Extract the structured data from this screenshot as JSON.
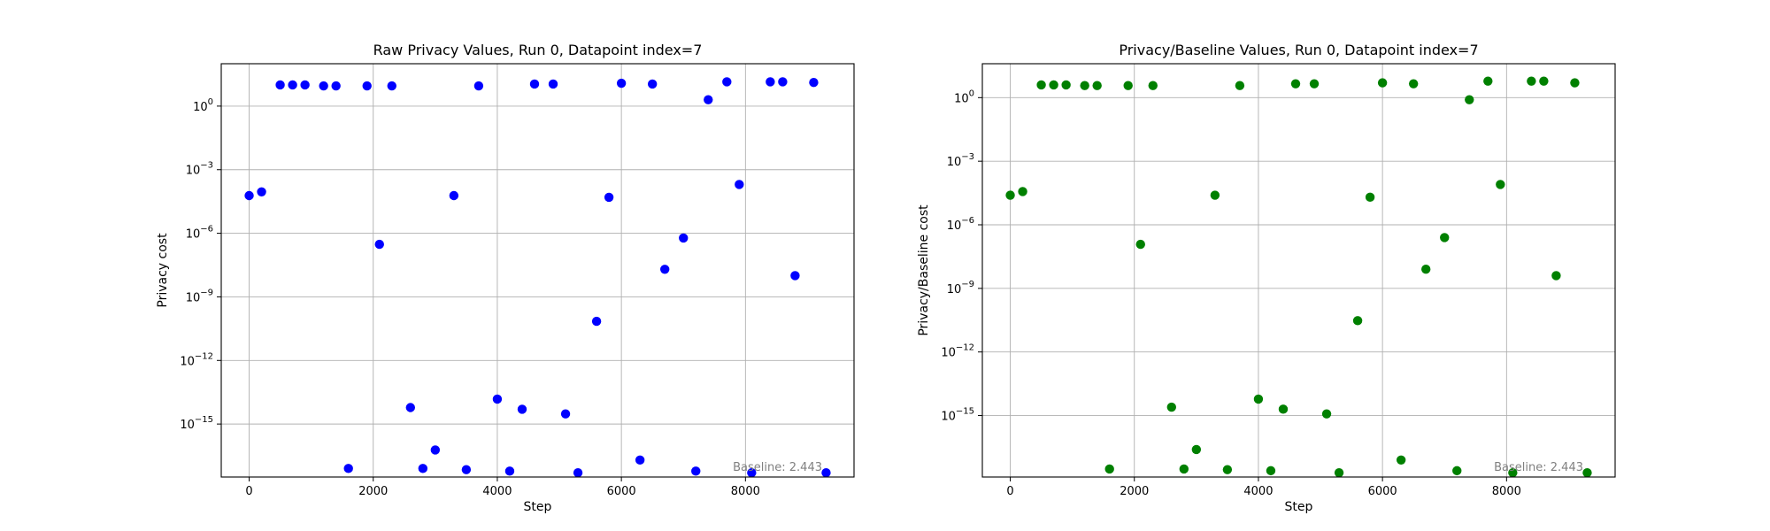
{
  "chart_data": [
    {
      "type": "scatter",
      "title": "Raw Privacy Values, Run 0, Datapoint index=7",
      "xlabel": "Step",
      "ylabel": "Privacy cost",
      "yscale": "log",
      "xlim": [
        -450,
        9750
      ],
      "ylim_exp": [
        -17.5,
        2
      ],
      "xticks": [
        0,
        2000,
        4000,
        6000,
        8000
      ],
      "xtick_labels": [
        "0",
        "2000",
        "4000",
        "6000",
        "8000"
      ],
      "yticks_exp": [
        0,
        -3,
        -6,
        -9,
        -12,
        -15
      ],
      "ytick_labels": [
        {
          "base": "10",
          "exp": "0"
        },
        {
          "base": "10",
          "exp": "−3"
        },
        {
          "base": "10",
          "exp": "−6"
        },
        {
          "base": "10",
          "exp": "−9"
        },
        {
          "base": "10",
          "exp": "−12"
        },
        {
          "base": "10",
          "exp": "−15"
        }
      ],
      "grid": true,
      "color": "#0000ff",
      "annotation": "Baseline: 2.443",
      "points": [
        {
          "x": 0,
          "y": 6e-05
        },
        {
          "x": 200,
          "y": 9e-05
        },
        {
          "x": 500,
          "y": 10
        },
        {
          "x": 700,
          "y": 10
        },
        {
          "x": 900,
          "y": 10
        },
        {
          "x": 1200,
          "y": 9
        },
        {
          "x": 1400,
          "y": 9
        },
        {
          "x": 1600,
          "y": 8e-18
        },
        {
          "x": 1900,
          "y": 9
        },
        {
          "x": 2100,
          "y": 3e-07
        },
        {
          "x": 2300,
          "y": 9
        },
        {
          "x": 2600,
          "y": 6e-15
        },
        {
          "x": 2800,
          "y": 8e-18
        },
        {
          "x": 3000,
          "y": 6e-17
        },
        {
          "x": 3300,
          "y": 6e-05
        },
        {
          "x": 3500,
          "y": 7e-18
        },
        {
          "x": 3700,
          "y": 9
        },
        {
          "x": 4000,
          "y": 1.5e-14
        },
        {
          "x": 4200,
          "y": 6e-18
        },
        {
          "x": 4400,
          "y": 5e-15
        },
        {
          "x": 4600,
          "y": 11
        },
        {
          "x": 4900,
          "y": 11
        },
        {
          "x": 5100,
          "y": 3e-15
        },
        {
          "x": 5300,
          "y": 5e-18
        },
        {
          "x": 5600,
          "y": 7e-11
        },
        {
          "x": 5800,
          "y": 5e-05
        },
        {
          "x": 6000,
          "y": 12
        },
        {
          "x": 6300,
          "y": 2e-17
        },
        {
          "x": 6500,
          "y": 11
        },
        {
          "x": 6700,
          "y": 2e-08
        },
        {
          "x": 7000,
          "y": 6e-07
        },
        {
          "x": 7200,
          "y": 6e-18
        },
        {
          "x": 7400,
          "y": 2
        },
        {
          "x": 7700,
          "y": 14
        },
        {
          "x": 7900,
          "y": 0.0002
        },
        {
          "x": 8100,
          "y": 5e-18
        },
        {
          "x": 8400,
          "y": 14
        },
        {
          "x": 8600,
          "y": 14
        },
        {
          "x": 8800,
          "y": 1e-08
        },
        {
          "x": 9100,
          "y": 13
        },
        {
          "x": 9300,
          "y": 5e-18
        }
      ]
    },
    {
      "type": "scatter",
      "title": "Privacy/Baseline Values, Run 0, Datapoint index=7",
      "xlabel": "Step",
      "ylabel": "Privacy/Baseline cost",
      "yscale": "log",
      "xlim": [
        -450,
        9750
      ],
      "ylim_exp": [
        -17.9,
        1.6
      ],
      "xticks": [
        0,
        2000,
        4000,
        6000,
        8000
      ],
      "xtick_labels": [
        "0",
        "2000",
        "4000",
        "6000",
        "8000"
      ],
      "yticks_exp": [
        0,
        -3,
        -6,
        -9,
        -12,
        -15
      ],
      "ytick_labels": [
        {
          "base": "10",
          "exp": "0"
        },
        {
          "base": "10",
          "exp": "−3"
        },
        {
          "base": "10",
          "exp": "−6"
        },
        {
          "base": "10",
          "exp": "−9"
        },
        {
          "base": "10",
          "exp": "−12"
        },
        {
          "base": "10",
          "exp": "−15"
        }
      ],
      "grid": true,
      "color": "#008000",
      "annotation": "Baseline: 2.443",
      "points": [
        {
          "x": 0,
          "y": 2.5e-05
        },
        {
          "x": 200,
          "y": 3.7e-05
        },
        {
          "x": 500,
          "y": 4
        },
        {
          "x": 700,
          "y": 4
        },
        {
          "x": 900,
          "y": 4
        },
        {
          "x": 1200,
          "y": 3.7
        },
        {
          "x": 1400,
          "y": 3.7
        },
        {
          "x": 1600,
          "y": 3e-18
        },
        {
          "x": 1900,
          "y": 3.7
        },
        {
          "x": 2100,
          "y": 1.2e-07
        },
        {
          "x": 2300,
          "y": 3.7
        },
        {
          "x": 2600,
          "y": 2.5e-15
        },
        {
          "x": 2800,
          "y": 3e-18
        },
        {
          "x": 3000,
          "y": 2.5e-17
        },
        {
          "x": 3300,
          "y": 2.5e-05
        },
        {
          "x": 3500,
          "y": 2.8e-18
        },
        {
          "x": 3700,
          "y": 3.7
        },
        {
          "x": 4000,
          "y": 6e-15
        },
        {
          "x": 4200,
          "y": 2.5e-18
        },
        {
          "x": 4400,
          "y": 2e-15
        },
        {
          "x": 4600,
          "y": 4.5
        },
        {
          "x": 4900,
          "y": 4.5
        },
        {
          "x": 5100,
          "y": 1.2e-15
        },
        {
          "x": 5300,
          "y": 2e-18
        },
        {
          "x": 5600,
          "y": 3e-11
        },
        {
          "x": 5800,
          "y": 2e-05
        },
        {
          "x": 6000,
          "y": 5
        },
        {
          "x": 6300,
          "y": 8e-18
        },
        {
          "x": 6500,
          "y": 4.5
        },
        {
          "x": 6700,
          "y": 8e-09
        },
        {
          "x": 7000,
          "y": 2.5e-07
        },
        {
          "x": 7200,
          "y": 2.5e-18
        },
        {
          "x": 7400,
          "y": 0.8
        },
        {
          "x": 7700,
          "y": 6
        },
        {
          "x": 7900,
          "y": 8e-05
        },
        {
          "x": 8100,
          "y": 2e-18
        },
        {
          "x": 8400,
          "y": 6
        },
        {
          "x": 8600,
          "y": 6
        },
        {
          "x": 8800,
          "y": 4e-09
        },
        {
          "x": 9100,
          "y": 5
        },
        {
          "x": 9300,
          "y": 2e-18
        }
      ]
    }
  ]
}
